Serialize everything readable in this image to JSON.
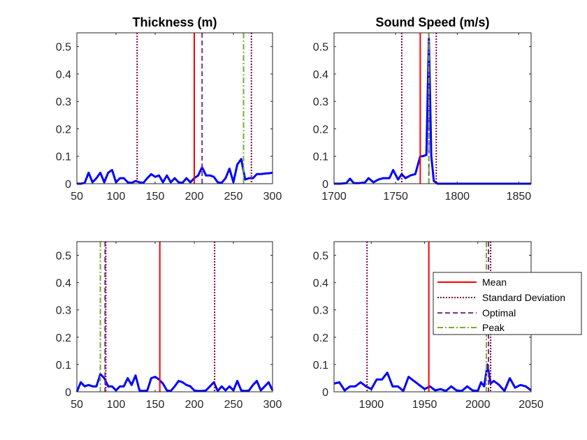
{
  "chart_data": [
    {
      "type": "line",
      "title": "Thickness (m)",
      "xlim": [
        50,
        300
      ],
      "ylim": [
        0,
        0.55
      ],
      "xticks": [
        "50",
        "100",
        "150",
        "200",
        "250",
        "300"
      ],
      "yticks": [
        "0",
        "0.1",
        "0.2",
        "0.3",
        "0.4",
        "0.5"
      ],
      "series": [
        {
          "x": [
            50,
            55,
            60,
            65,
            70,
            75,
            80,
            85,
            90,
            95,
            100,
            105,
            110,
            115,
            120,
            125,
            130,
            135,
            140,
            145,
            150,
            155,
            160,
            165,
            170,
            175,
            180,
            185,
            190,
            195,
            200,
            205,
            210,
            215,
            220,
            225,
            230,
            235,
            240,
            245,
            250,
            255,
            260,
            265,
            270,
            275,
            280,
            285,
            290,
            295,
            300
          ],
          "y": [
            0,
            0,
            0.003,
            0.04,
            0.005,
            0.02,
            0.04,
            0.005,
            0.04,
            0.05,
            0.005,
            0.02,
            0.02,
            0.005,
            0.003,
            0.01,
            0.005,
            0.003,
            0.02,
            0.035,
            0.025,
            0.03,
            0.005,
            0.03,
            0.005,
            0.02,
            0.005,
            0.003,
            0.02,
            0.005,
            0.02,
            0.03,
            0.06,
            0.03,
            0.03,
            0.025,
            0.005,
            0.003,
            0.02,
            0.055,
            0.005,
            0.07,
            0.09,
            0.015,
            0.02,
            0.02,
            0.035,
            0.035,
            0.037,
            0.038,
            0.04
          ]
        }
      ],
      "vlines": [
        {
          "style": "mean",
          "x": 200
        },
        {
          "style": "std",
          "x": 127
        },
        {
          "style": "std",
          "x": 273
        },
        {
          "style": "optimal",
          "x": 210
        },
        {
          "style": "peak",
          "x": 263
        }
      ]
    },
    {
      "type": "line",
      "title": "Sound Speed (m/s)",
      "xlim": [
        1700,
        1860
      ],
      "ylim": [
        0,
        0.55
      ],
      "xticks": [
        "1700",
        "1750",
        "1800",
        "1850"
      ],
      "yticks": [
        "0",
        "0.1",
        "0.2",
        "0.3",
        "0.4",
        "0.5"
      ],
      "series": [
        {
          "x": [
            1700,
            1705,
            1710,
            1713,
            1716,
            1720,
            1725,
            1728,
            1732,
            1736,
            1740,
            1745,
            1748,
            1752,
            1755,
            1758,
            1762,
            1766,
            1770,
            1772,
            1775,
            1777,
            1779,
            1781,
            1784,
            1790,
            1800,
            1810,
            1820,
            1830,
            1840,
            1850,
            1860
          ],
          "y": [
            0,
            0,
            0.002,
            0.018,
            0.002,
            0.002,
            0.004,
            0.02,
            0.005,
            0.015,
            0.02,
            0.02,
            0.05,
            0.015,
            0.035,
            0.02,
            0.03,
            0.035,
            0.1,
            0.1,
            0.105,
            0.53,
            0.1,
            0.01,
            0,
            0,
            0,
            0,
            0,
            0,
            0,
            0,
            0
          ]
        }
      ],
      "vlines": [
        {
          "style": "mean",
          "x": 1770
        },
        {
          "style": "std",
          "x": 1755
        },
        {
          "style": "std",
          "x": 1783
        },
        {
          "style": "optimal",
          "x": 1777
        },
        {
          "style": "peak",
          "x": 1777
        }
      ]
    },
    {
      "type": "line",
      "title": "",
      "xlim": [
        50,
        300
      ],
      "ylim": [
        0,
        0.55
      ],
      "xticks": [
        "50",
        "100",
        "150",
        "200",
        "250",
        "300"
      ],
      "yticks": [
        "0",
        "0.1",
        "0.2",
        "0.3",
        "0.4",
        "0.5"
      ],
      "series": [
        {
          "x": [
            50,
            55,
            60,
            65,
            70,
            75,
            80,
            85,
            90,
            95,
            100,
            105,
            110,
            115,
            120,
            125,
            130,
            135,
            140,
            145,
            150,
            155,
            160,
            165,
            170,
            175,
            180,
            185,
            190,
            195,
            200,
            205,
            210,
            215,
            220,
            225,
            230,
            235,
            240,
            245,
            250,
            255,
            260,
            265,
            270,
            275,
            280,
            285,
            290,
            295,
            300
          ],
          "y": [
            0,
            0.035,
            0.02,
            0.025,
            0.02,
            0.02,
            0.065,
            0.05,
            0.02,
            0.02,
            0.005,
            0.02,
            0.02,
            0.05,
            0.025,
            0.06,
            0.005,
            0.003,
            0.005,
            0.05,
            0.055,
            0.045,
            0.03,
            0.005,
            0.003,
            0.02,
            0.04,
            0.035,
            0.025,
            0.02,
            0.005,
            0.003,
            0.003,
            0.005,
            0.02,
            0.035,
            0.003,
            0.02,
            0.005,
            0.02,
            0.005,
            0.04,
            0.005,
            0.003,
            0.005,
            0.025,
            0.04,
            0.005,
            0.02,
            0.035,
            0.005
          ]
        }
      ],
      "vlines": [
        {
          "style": "mean",
          "x": 156
        },
        {
          "style": "std",
          "x": 87
        },
        {
          "style": "std",
          "x": 226
        },
        {
          "style": "optimal",
          "x": 86
        },
        {
          "style": "peak",
          "x": 80
        }
      ]
    },
    {
      "type": "line",
      "title": "",
      "xlim": [
        1865,
        2050
      ],
      "ylim": [
        0,
        0.55
      ],
      "xticks": [
        "1900",
        "1950",
        "2000",
        "2050"
      ],
      "yticks": [
        "0",
        "0.1",
        "0.2",
        "0.3",
        "0.4",
        "0.5"
      ],
      "series": [
        {
          "x": [
            1865,
            1870,
            1875,
            1880,
            1885,
            1890,
            1895,
            1900,
            1905,
            1910,
            1915,
            1920,
            1925,
            1930,
            1935,
            1940,
            1945,
            1950,
            1955,
            1960,
            1965,
            1970,
            1975,
            1980,
            1985,
            1990,
            1995,
            2000,
            2003,
            2006,
            2009,
            2012,
            2015,
            2020,
            2025,
            2030,
            2035,
            2040,
            2045,
            2050
          ],
          "y": [
            0.03,
            0.035,
            0.005,
            0.02,
            0.02,
            0.035,
            0.02,
            0.01,
            0.045,
            0.045,
            0.07,
            0.02,
            0.02,
            0.003,
            0.055,
            0.04,
            0.025,
            0.01,
            0.02,
            0.005,
            0.01,
            0.003,
            0.02,
            0.005,
            0.003,
            0.02,
            0.005,
            0.003,
            0.035,
            0.02,
            0.1,
            0.03,
            0.04,
            0.025,
            0.003,
            0.05,
            0.015,
            0.025,
            0.02,
            0.005
          ]
        }
      ],
      "vlines": [
        {
          "style": "mean",
          "x": 1954
        },
        {
          "style": "std",
          "x": 1896
        },
        {
          "style": "std",
          "x": 2012
        },
        {
          "style": "optimal",
          "x": 2010
        },
        {
          "style": "peak",
          "x": 2008
        }
      ]
    }
  ],
  "legend": {
    "placement": "right, over bottom-right panel",
    "entries": [
      {
        "style": "mean",
        "label": "Mean"
      },
      {
        "style": "std",
        "label": "Standard Deviation"
      },
      {
        "style": "optimal",
        "label": "Optimal"
      },
      {
        "style": "peak",
        "label": "Peak"
      }
    ]
  },
  "styles": {
    "data": {
      "color": "#0000ff"
    },
    "mean": {
      "color": "#ff0000"
    },
    "std": {
      "color": "#800040"
    },
    "optimal": {
      "color": "#7e2f8e"
    },
    "peak": {
      "color": "#77ac30"
    }
  }
}
